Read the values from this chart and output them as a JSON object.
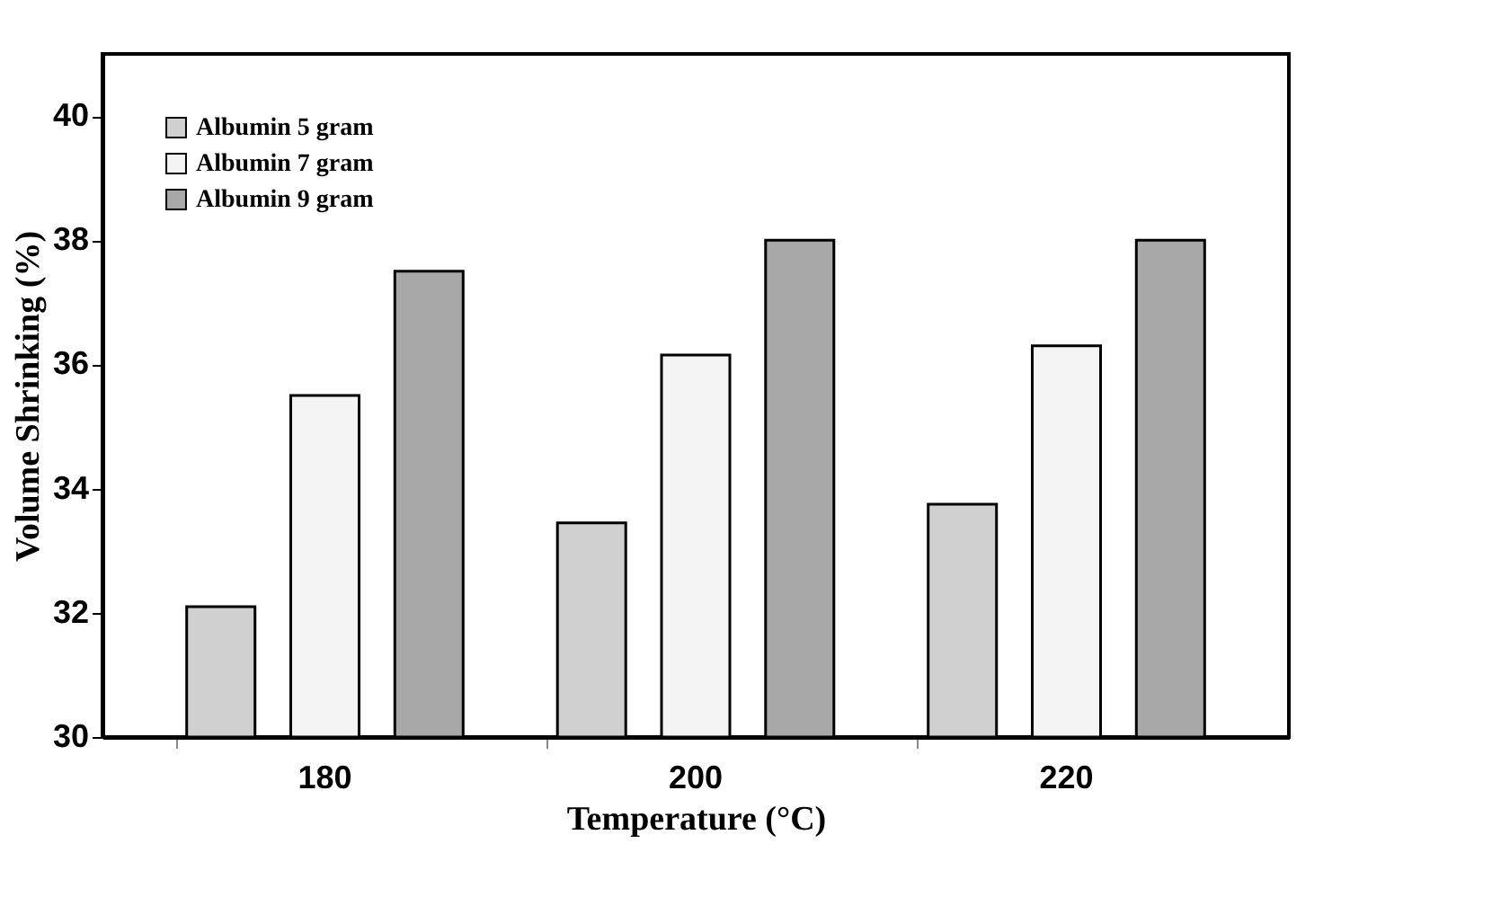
{
  "chart_data": {
    "type": "bar",
    "xlabel": "Temperature (°C)",
    "ylabel": "Volume Shrinking (%)",
    "categories": [
      "180",
      "200",
      "220"
    ],
    "series": [
      {
        "name": "Albumin 5 gram",
        "color": "#d0d0d0",
        "values": [
          32.1,
          33.45,
          33.75
        ]
      },
      {
        "name": "Albumin 7 gram",
        "color": "#f4f4f4",
        "values": [
          35.5,
          36.15,
          36.3
        ]
      },
      {
        "name": "Albumin 9 gram",
        "color": "#a8a8a8",
        "values": [
          37.5,
          38.0,
          38.0
        ]
      }
    ],
    "ylim": [
      30,
      41
    ],
    "yticks": [
      30,
      32,
      34,
      36,
      38,
      40
    ],
    "grid": false,
    "legend": "top left"
  }
}
